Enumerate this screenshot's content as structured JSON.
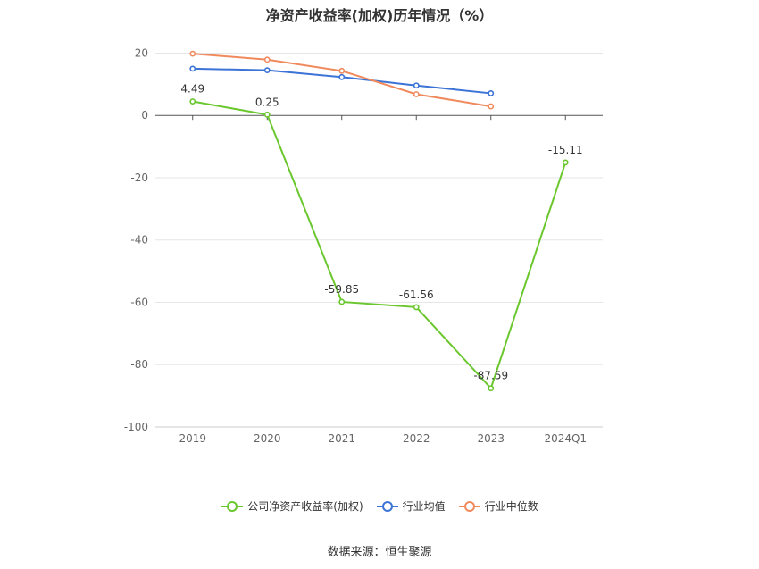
{
  "chart_data": {
    "type": "line",
    "title": "净资产收益率(加权)历年情况（%）",
    "categories": [
      "2019",
      "2020",
      "2021",
      "2022",
      "2023",
      "2024Q1"
    ],
    "ylim": [
      -100,
      25
    ],
    "yticks": [
      20,
      0,
      -20,
      -40,
      -60,
      -80,
      -100
    ],
    "grid": true,
    "legend_position": "bottom",
    "series": [
      {
        "name": "公司净资产收益率(加权)",
        "color": "#6ac72d",
        "values": [
          4.49,
          0.25,
          -59.85,
          -61.56,
          -87.59,
          -15.11
        ],
        "labels": [
          "4.49",
          "0.25",
          "-59.85",
          "-61.56",
          "-87.59",
          "-15.11"
        ]
      },
      {
        "name": "行业均值",
        "color": "#3b73d6",
        "values": [
          15.0,
          14.5,
          12.3,
          9.6,
          7.1,
          null
        ]
      },
      {
        "name": "行业中位数",
        "color": "#f08a5d",
        "values": [
          19.8,
          17.9,
          14.3,
          6.8,
          2.9,
          null
        ]
      }
    ]
  },
  "source": "数据来源：恒生聚源"
}
